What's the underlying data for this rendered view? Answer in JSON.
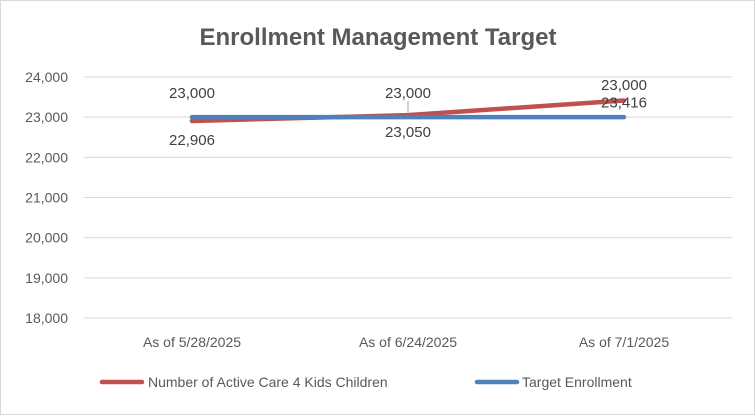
{
  "chart_data": {
    "type": "line",
    "title": "Enrollment Management Target",
    "categories": [
      "As of 5/28/2025",
      "As of 6/24/2025",
      "As of 7/1/2025"
    ],
    "ylim": [
      18000,
      24000
    ],
    "y_ticks": [
      18000,
      19000,
      20000,
      21000,
      22000,
      23000,
      24000
    ],
    "y_tick_labels": [
      "18,000",
      "19,000",
      "20,000",
      "21,000",
      "22,000",
      "23,000",
      "24,000"
    ],
    "grid": true,
    "legend_position": "bottom",
    "series": [
      {
        "name": "Number of Active Care 4 Kids Children",
        "color": "#c0504d",
        "values": [
          22906,
          23050,
          23416
        ],
        "labels": [
          "22,906",
          "23,050",
          "23,416"
        ]
      },
      {
        "name": "Target Enrollment",
        "color": "#4f81bd",
        "values": [
          23000,
          23000,
          23000
        ],
        "labels": [
          "23,000",
          "23,000",
          "23,000"
        ]
      }
    ]
  }
}
